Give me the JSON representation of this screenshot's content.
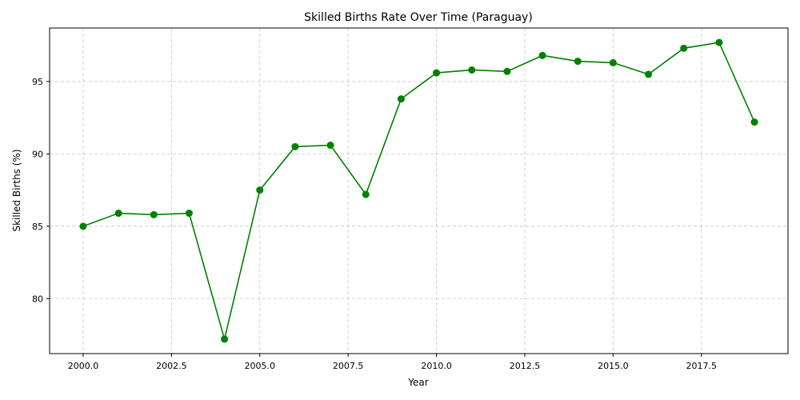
{
  "chart_data": {
    "type": "line",
    "title": "Skilled Births Rate Over Time (Paraguay)",
    "xlabel": "Year",
    "ylabel": "Skilled Births (%)",
    "xlim": [
      1999.05,
      2019.95
    ],
    "ylim": [
      76.2,
      98.7
    ],
    "xticks": [
      2000,
      2002.5,
      2005,
      2007.5,
      2010,
      2012.5,
      2015,
      2017.5
    ],
    "xtick_labels": [
      "2000.0",
      "2002.5",
      "2005.0",
      "2007.5",
      "2010.0",
      "2012.5",
      "2015.0",
      "2017.5"
    ],
    "yticks": [
      80,
      85,
      90,
      95
    ],
    "ytick_labels": [
      "80",
      "85",
      "90",
      "95"
    ],
    "grid": true,
    "color": "#008000",
    "marker": "circle",
    "x": [
      2000,
      2001,
      2002,
      2003,
      2004,
      2005,
      2006,
      2007,
      2008,
      2009,
      2010,
      2011,
      2012,
      2013,
      2014,
      2015,
      2016,
      2017,
      2018,
      2019
    ],
    "values": [
      85.0,
      85.9,
      85.8,
      85.9,
      77.2,
      87.5,
      90.5,
      90.6,
      87.2,
      93.8,
      95.6,
      95.8,
      95.7,
      96.8,
      96.4,
      96.3,
      95.5,
      97.3,
      97.7,
      92.2
    ]
  }
}
